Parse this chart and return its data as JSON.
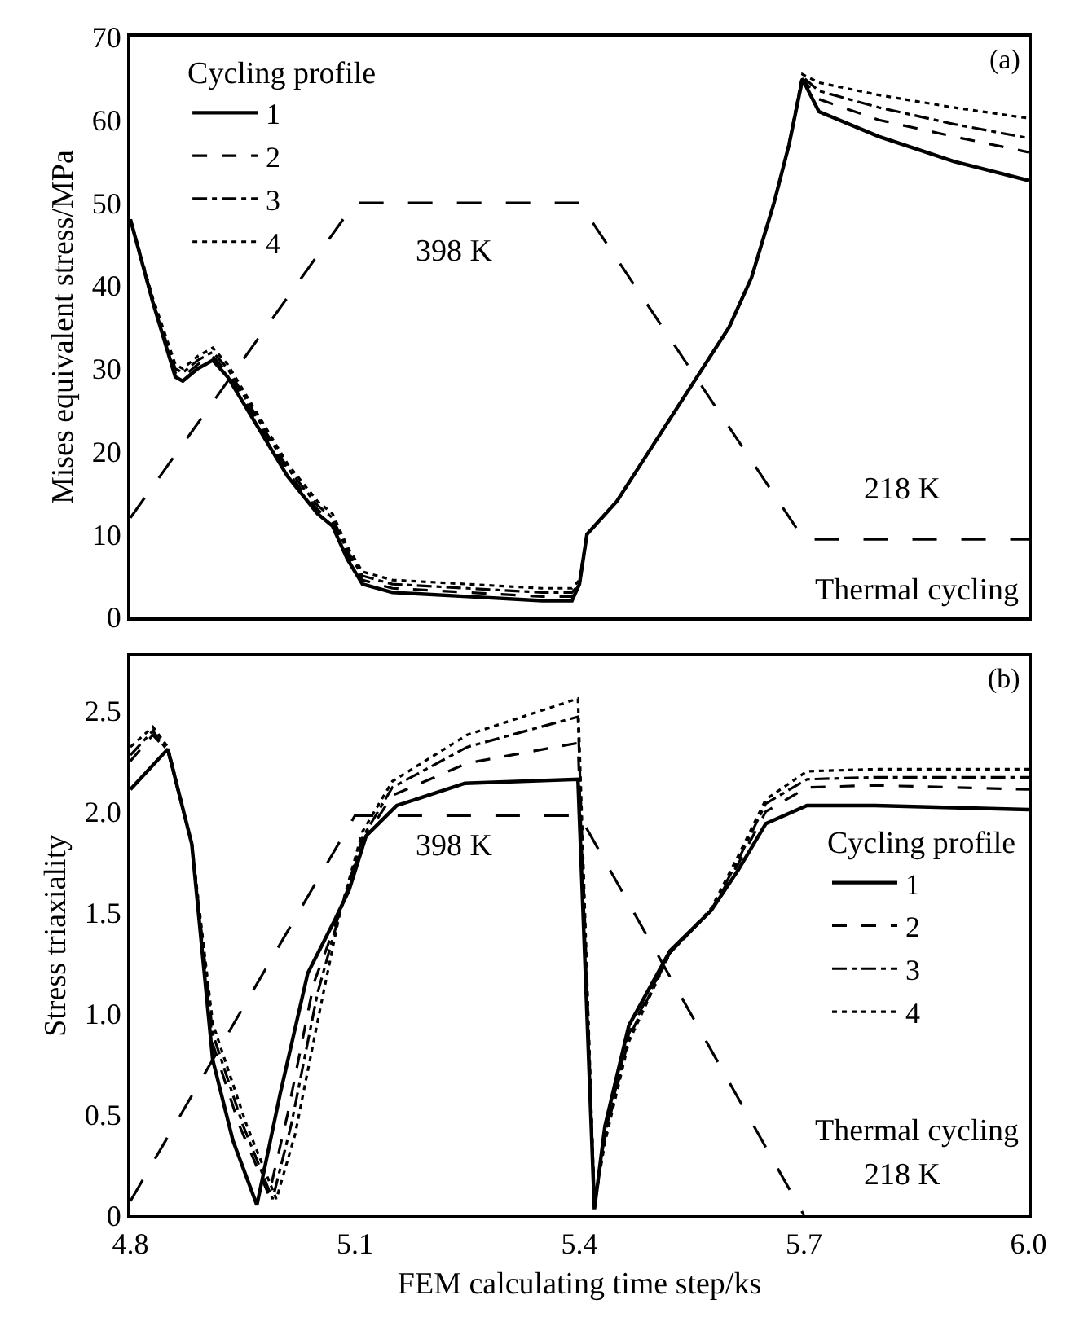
{
  "chart_data": [
    {
      "type": "line",
      "ylabel": "Mises equivalent stress/MPa",
      "xlim": [
        4.8,
        6.0
      ],
      "ylim": [
        0,
        70
      ],
      "yticks": [
        0,
        10,
        20,
        30,
        40,
        50,
        60,
        70
      ],
      "tick_labels": "y",
      "legend": "top left",
      "legend_title": "Cycling profile",
      "series": [
        {
          "name": "1",
          "color": "#000000",
          "line_style": "solid",
          "x": [
            4.8,
            4.83,
            4.86,
            4.87,
            4.89,
            4.91,
            4.93,
            4.97,
            5.01,
            5.05,
            5.07,
            5.09,
            5.11,
            5.15,
            5.25,
            5.35,
            5.39,
            5.4,
            5.41,
            5.45,
            5.5,
            5.55,
            5.6,
            5.63,
            5.66,
            5.68,
            5.698,
            5.72,
            5.8,
            5.9,
            6.0
          ],
          "values": [
            48,
            38,
            29,
            28.5,
            30,
            31,
            29,
            23,
            17,
            12.5,
            11,
            7,
            4,
            3,
            2.5,
            2,
            2,
            4,
            10,
            14,
            21,
            28,
            35,
            41,
            50,
            57,
            64.9,
            61,
            58,
            55,
            52.7
          ]
        },
        {
          "name": "2",
          "color": "#000000",
          "line_style": "dashed",
          "x": [
            4.8,
            4.83,
            4.86,
            4.87,
            4.89,
            4.91,
            4.93,
            4.97,
            5.01,
            5.05,
            5.07,
            5.09,
            5.11,
            5.15,
            5.25,
            5.35,
            5.39,
            5.4,
            5.41,
            5.45,
            5.5,
            5.55,
            5.6,
            5.63,
            5.66,
            5.68,
            5.698,
            5.72,
            5.8,
            5.9,
            6.0
          ],
          "values": [
            48,
            38,
            29.5,
            29,
            30.5,
            31.5,
            29.5,
            23.5,
            17.5,
            13,
            11.5,
            7.5,
            4.5,
            3.5,
            3,
            2.5,
            2.5,
            4,
            10,
            14,
            21,
            28,
            35,
            41,
            50,
            57,
            65,
            62.5,
            60,
            58,
            56.1
          ]
        },
        {
          "name": "3",
          "color": "#000000",
          "line_style": "dashdot",
          "x": [
            4.8,
            4.83,
            4.86,
            4.87,
            4.89,
            4.91,
            4.93,
            4.97,
            5.01,
            5.05,
            5.07,
            5.09,
            5.11,
            5.15,
            5.25,
            5.35,
            5.39,
            5.4,
            5.41,
            5.45,
            5.5,
            5.55,
            5.6,
            5.63,
            5.66,
            5.68,
            5.698,
            5.72,
            5.8,
            5.9,
            6.0
          ],
          "values": [
            48,
            38,
            30,
            29.5,
            31,
            32,
            30,
            24,
            18,
            13.5,
            12,
            8,
            5,
            4,
            3.5,
            3,
            3,
            4,
            10,
            14,
            21,
            28,
            35,
            41,
            50,
            57,
            65.2,
            63.5,
            61.5,
            59.5,
            57.8
          ]
        },
        {
          "name": "4",
          "color": "#000000",
          "line_style": "dotted",
          "x": [
            4.8,
            4.83,
            4.86,
            4.87,
            4.89,
            4.91,
            4.93,
            4.97,
            5.01,
            5.05,
            5.07,
            5.09,
            5.11,
            5.15,
            5.25,
            5.35,
            5.39,
            5.4,
            5.41,
            5.45,
            5.5,
            5.55,
            5.6,
            5.63,
            5.66,
            5.68,
            5.698,
            5.72,
            5.8,
            5.9,
            6.0
          ],
          "values": [
            48,
            38.5,
            30.5,
            30,
            31.5,
            32.5,
            30.5,
            24.5,
            18.5,
            14,
            12.5,
            8.5,
            5.5,
            4.5,
            4,
            3.5,
            3.5,
            4.5,
            10,
            14,
            21,
            28,
            35,
            41,
            50,
            57,
            65.5,
            64.5,
            63,
            61.5,
            60.2
          ]
        },
        {
          "color": "#000000",
          "line_style": "longdash",
          "x": [
            4.8,
            5.1,
            5.4,
            5.7,
            6.0
          ],
          "values": [
            12,
            50,
            50,
            9.4,
            9.4
          ]
        }
      ],
      "annotations": [
        "(a)",
        "398 K",
        "218 K",
        "Thermal cycling"
      ]
    },
    {
      "type": "line",
      "xlabel": "FEM calculating time step/ks",
      "ylabel": "Stress triaxiality",
      "xlim": [
        4.8,
        6.0
      ],
      "xticks": [
        4.8,
        5.1,
        5.4,
        5.7,
        {
          "value": 6.0,
          "label": "6.0"
        }
      ],
      "ylim": [
        0,
        2.77
      ],
      "yticks": [
        0,
        0.5,
        {
          "value": 1.0,
          "label": "1.0"
        },
        1.5,
        {
          "value": 2.0,
          "label": "2.0"
        },
        2.5
      ],
      "legend": "right",
      "legend_title": "Cycling profile",
      "series": [
        {
          "name": "1",
          "color": "#000000",
          "line_style": "solid",
          "x": [
            4.8,
            4.85,
            4.882,
            4.91,
            4.937,
            4.969,
            5.0,
            5.037,
            5.074,
            5.092,
            5.115,
            5.156,
            5.247,
            5.398,
            5.42,
            5.434,
            5.466,
            5.521,
            5.576,
            5.612,
            5.649,
            5.704,
            5.795,
            6.0
          ],
          "values": [
            2.11,
            2.31,
            1.84,
            0.77,
            0.37,
            0.05,
            0.6,
            1.2,
            1.47,
            1.61,
            1.88,
            2.03,
            2.14,
            2.16,
            0.03,
            0.44,
            0.94,
            1.31,
            1.51,
            1.71,
            1.94,
            2.03,
            2.03,
            2.01
          ]
        },
        {
          "name": "2",
          "color": "#000000",
          "line_style": "dashed",
          "x": [
            4.8,
            4.83,
            4.85,
            4.882,
            4.91,
            4.945,
            4.985,
            5.01,
            5.045,
            5.08,
            5.11,
            5.15,
            5.25,
            5.398,
            5.42,
            5.434,
            5.466,
            5.521,
            5.576,
            5.612,
            5.649,
            5.704,
            5.795,
            6.0
          ],
          "values": [
            2.25,
            2.38,
            2.3,
            1.84,
            0.85,
            0.45,
            0.1,
            0.5,
            1.15,
            1.5,
            1.85,
            2.08,
            2.24,
            2.34,
            0.05,
            0.4,
            0.9,
            1.3,
            1.51,
            1.74,
            2.0,
            2.12,
            2.13,
            2.11
          ]
        },
        {
          "name": "3",
          "color": "#000000",
          "line_style": "dashdot",
          "x": [
            4.8,
            4.83,
            4.85,
            4.882,
            4.91,
            4.95,
            4.99,
            5.015,
            5.05,
            5.08,
            5.11,
            5.15,
            5.25,
            5.398,
            5.42,
            5.434,
            5.466,
            5.521,
            5.576,
            5.612,
            5.649,
            5.704,
            5.795,
            6.0
          ],
          "values": [
            2.28,
            2.4,
            2.3,
            1.84,
            0.9,
            0.45,
            0.08,
            0.45,
            1.1,
            1.5,
            1.87,
            2.12,
            2.32,
            2.47,
            0.05,
            0.38,
            0.88,
            1.3,
            1.51,
            1.76,
            2.04,
            2.16,
            2.17,
            2.17
          ]
        },
        {
          "name": "4",
          "color": "#000000",
          "line_style": "dotted",
          "x": [
            4.8,
            4.83,
            4.85,
            4.882,
            4.91,
            4.955,
            4.995,
            5.02,
            5.055,
            5.08,
            5.11,
            5.15,
            5.25,
            5.398,
            5.42,
            5.434,
            5.466,
            5.521,
            5.576,
            5.612,
            5.649,
            5.704,
            5.795,
            6.0
          ],
          "values": [
            2.32,
            2.42,
            2.32,
            1.84,
            0.95,
            0.45,
            0.08,
            0.4,
            1.05,
            1.5,
            1.9,
            2.15,
            2.38,
            2.56,
            0.05,
            0.36,
            0.86,
            1.3,
            1.52,
            1.78,
            2.06,
            2.2,
            2.21,
            2.21
          ]
        },
        {
          "color": "#000000",
          "line_style": "longdash",
          "x": [
            4.8,
            5.1,
            5.4,
            5.7
          ],
          "values": [
            0.07,
            1.98,
            1.98,
            0
          ]
        }
      ],
      "annotations": [
        "(b)",
        "398 K",
        "Thermal cycling",
        "218 K"
      ]
    }
  ]
}
